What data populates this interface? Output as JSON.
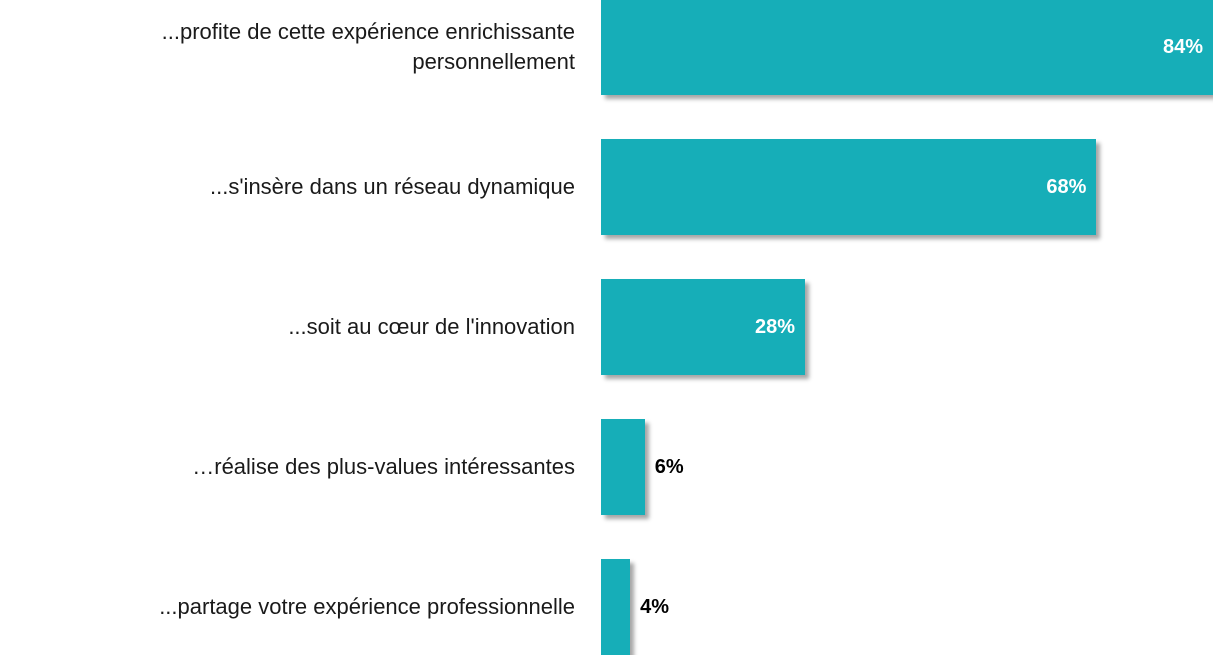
{
  "chart_data": {
    "type": "bar",
    "orientation": "horizontal",
    "categories": [
      "...profite de cette expérience enrichissante personnellement",
      "...s'insère dans un réseau dynamique",
      "...soit au cœur de l'innovation",
      "…réalise des plus-values intéressantes",
      "...partage votre expérience professionnelle"
    ],
    "values": [
      84,
      68,
      28,
      6,
      4
    ],
    "value_labels": [
      "84%",
      "68%",
      "28%",
      "6%",
      "4%"
    ],
    "color": "#16aeb8"
  }
}
